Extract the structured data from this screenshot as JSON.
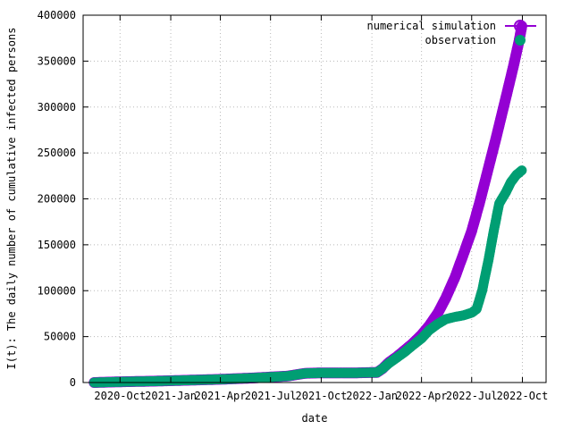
{
  "chart_data": {
    "type": "scatter",
    "title": "",
    "xlabel": "date",
    "ylabel": "I(t): The daily number of cumulative infected persons",
    "xlim": [
      "2020-07-26",
      "2022-11-13"
    ],
    "ylim": [
      0,
      400000
    ],
    "x_ticks": [
      {
        "date": "2020-10-01",
        "label": "2020-Oct"
      },
      {
        "date": "2021-01-01",
        "label": "2021-Jan"
      },
      {
        "date": "2021-04-01",
        "label": "2021-Apr"
      },
      {
        "date": "2021-07-01",
        "label": "2021-Jul"
      },
      {
        "date": "2021-10-01",
        "label": "2021-Oct"
      },
      {
        "date": "2022-01-01",
        "label": "2022-Jan"
      },
      {
        "date": "2022-04-01",
        "label": "2022-Apr"
      },
      {
        "date": "2022-07-01",
        "label": "2022-Jul"
      },
      {
        "date": "2022-10-01",
        "label": "2022-Oct"
      }
    ],
    "y_ticks": [
      0,
      50000,
      100000,
      150000,
      200000,
      250000,
      300000,
      350000,
      400000
    ],
    "grid": true,
    "legend_position": "top-right",
    "series": [
      {
        "name": "numerical simulation",
        "color": "#9400d3",
        "marker": "open-circle",
        "x": [
          "2020-08-15",
          "2020-10-01",
          "2020-12-01",
          "2021-02-01",
          "2021-04-01",
          "2021-06-01",
          "2021-08-01",
          "2021-09-01",
          "2021-10-01",
          "2021-12-01",
          "2022-01-10",
          "2022-01-20",
          "2022-02-01",
          "2022-02-15",
          "2022-03-01",
          "2022-03-15",
          "2022-04-01",
          "2022-04-15",
          "2022-05-01",
          "2022-05-15",
          "2022-06-01",
          "2022-06-15",
          "2022-07-01",
          "2022-07-15",
          "2022-08-01",
          "2022-08-15",
          "2022-09-01",
          "2022-09-15",
          "2022-09-25",
          "2022-09-30"
        ],
        "y": [
          0,
          800,
          1500,
          2500,
          3500,
          5000,
          7000,
          10000,
          10500,
          10500,
          11000,
          15000,
          22000,
          28000,
          35000,
          42000,
          52000,
          62000,
          76000,
          92000,
          115000,
          138000,
          165000,
          195000,
          235000,
          268000,
          310000,
          345000,
          372000,
          388000
        ]
      },
      {
        "name": "observation",
        "color": "#009e73",
        "marker": "filled-circle",
        "x": [
          "2020-08-15",
          "2020-10-01",
          "2020-12-01",
          "2021-02-01",
          "2021-04-01",
          "2021-06-01",
          "2021-08-01",
          "2021-09-01",
          "2021-10-01",
          "2021-12-01",
          "2022-01-10",
          "2022-01-20",
          "2022-02-01",
          "2022-02-15",
          "2022-03-01",
          "2022-03-15",
          "2022-04-01",
          "2022-04-15",
          "2022-05-01",
          "2022-05-15",
          "2022-06-01",
          "2022-06-15",
          "2022-07-01",
          "2022-07-10",
          "2022-07-20",
          "2022-08-01",
          "2022-08-10",
          "2022-08-20",
          "2022-09-01",
          "2022-09-10",
          "2022-09-20",
          "2022-09-30"
        ],
        "y": [
          0,
          800,
          1500,
          2500,
          3500,
          5000,
          7000,
          10000,
          10500,
          10500,
          11000,
          15000,
          21000,
          27000,
          33000,
          40000,
          48000,
          57000,
          64000,
          69000,
          71500,
          73000,
          76000,
          80000,
          100000,
          135000,
          165000,
          195000,
          207000,
          218000,
          226000,
          231000
        ]
      }
    ]
  }
}
